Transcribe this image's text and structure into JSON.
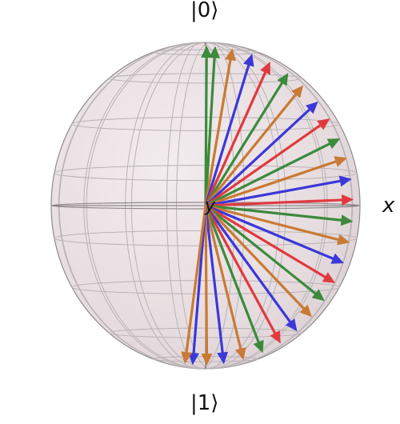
{
  "labels": {
    "ket0": "|0⟩",
    "ket1": "|1⟩",
    "x_axis": "x",
    "y_axis": "y"
  },
  "colors": {
    "sphere_fill": "#e8dfe1",
    "sphere_edge": "#8f8a8c",
    "wire": "#b9b3b5",
    "vector_colors": [
      "#3c8a3c",
      "#c97a35",
      "#3b38d8",
      "#e03a3e"
    ]
  },
  "vectors": [
    {
      "name": "vector-1",
      "color": "#3c8a3c",
      "theta_deg": 0.4,
      "phi_deg": 0
    },
    {
      "name": "vector-2",
      "color": "#3c8a3c",
      "theta_deg": 3.7,
      "phi_deg": 0
    },
    {
      "name": "vector-3",
      "color": "#c97a35",
      "theta_deg": 10.4,
      "phi_deg": 0
    },
    {
      "name": "vector-4",
      "color": "#3b38d8",
      "theta_deg": 18.3,
      "phi_deg": 0
    },
    {
      "name": "vector-5",
      "color": "#e03a3e",
      "theta_deg": 25.8,
      "phi_deg": 0
    },
    {
      "name": "vector-6",
      "color": "#3c8a3c",
      "theta_deg": 33.9,
      "phi_deg": 0
    },
    {
      "name": "vector-7",
      "color": "#c97a35",
      "theta_deg": 41.2,
      "phi_deg": 0
    },
    {
      "name": "vector-8",
      "color": "#3b38d8",
      "theta_deg": 49.4,
      "phi_deg": 0
    },
    {
      "name": "vector-9",
      "color": "#e03a3e",
      "theta_deg": 57.0,
      "phi_deg": 0
    },
    {
      "name": "vector-10",
      "color": "#3c8a3c",
      "theta_deg": 65.2,
      "phi_deg": 0
    },
    {
      "name": "vector-11",
      "color": "#c97a35",
      "theta_deg": 72.6,
      "phi_deg": 0
    },
    {
      "name": "vector-12",
      "color": "#3b38d8",
      "theta_deg": 80.4,
      "phi_deg": 0
    },
    {
      "name": "vector-13",
      "color": "#e03a3e",
      "theta_deg": 87.8,
      "phi_deg": 0
    },
    {
      "name": "vector-14",
      "color": "#3c8a3c",
      "theta_deg": 95.7,
      "phi_deg": 0
    },
    {
      "name": "vector-15",
      "color": "#c97a35",
      "theta_deg": 103.4,
      "phi_deg": 0
    },
    {
      "name": "vector-16",
      "color": "#3b38d8",
      "theta_deg": 111.1,
      "phi_deg": 0
    },
    {
      "name": "vector-17",
      "color": "#e03a3e",
      "theta_deg": 119.0,
      "phi_deg": 0
    },
    {
      "name": "vector-18",
      "color": "#3c8a3c",
      "theta_deg": 126.6,
      "phi_deg": 0
    },
    {
      "name": "vector-19",
      "color": "#c97a35",
      "theta_deg": 134.2,
      "phi_deg": 0
    },
    {
      "name": "vector-20",
      "color": "#3b38d8",
      "theta_deg": 141.9,
      "phi_deg": 0
    },
    {
      "name": "vector-21",
      "color": "#e03a3e",
      "theta_deg": 149.6,
      "phi_deg": 0
    },
    {
      "name": "vector-22",
      "color": "#3c8a3c",
      "theta_deg": 157.3,
      "phi_deg": 0
    },
    {
      "name": "vector-23",
      "color": "#c97a35",
      "theta_deg": 165.2,
      "phi_deg": 0
    },
    {
      "name": "vector-24",
      "color": "#3b38d8",
      "theta_deg": 172.9,
      "phi_deg": 0
    },
    {
      "name": "vector-25",
      "color": "#c97a35",
      "theta_deg": 179.5,
      "phi_deg": 0
    },
    {
      "name": "vector-26",
      "color": "#3b38d8",
      "theta_deg": 175.0,
      "phi_deg": 180
    },
    {
      "name": "vector-27",
      "color": "#c97a35",
      "theta_deg": 172.0,
      "phi_deg": 180
    }
  ]
}
